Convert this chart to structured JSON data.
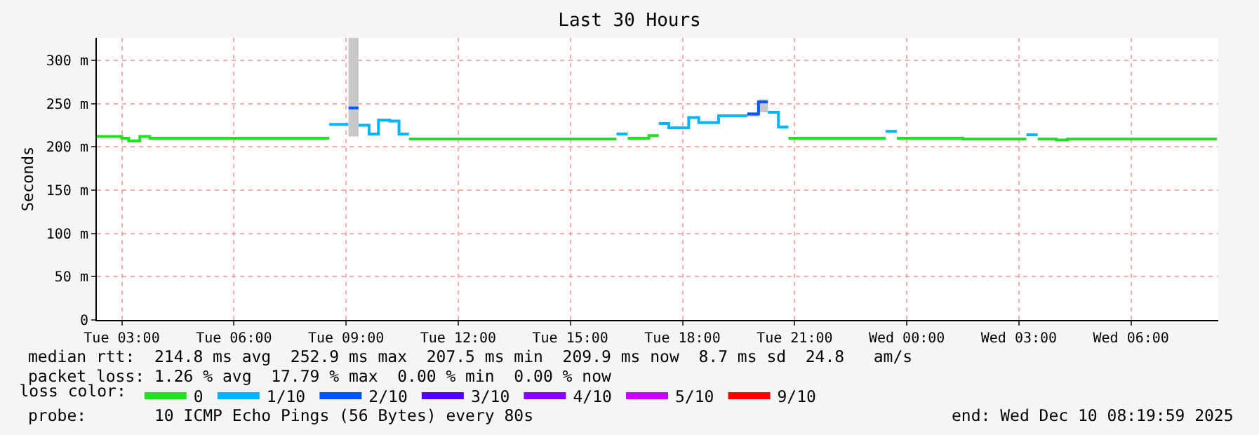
{
  "chart_data": {
    "type": "step",
    "title": "Last 30 Hours",
    "ylabel": "Seconds",
    "xlim": [
      "2025-12-09T02:20",
      "2025-12-10T08:20"
    ],
    "xticks": [
      {
        "value": "2025-12-09T03:00",
        "label": "Tue 03:00"
      },
      {
        "value": "2025-12-09T06:00",
        "label": "Tue 06:00"
      },
      {
        "value": "2025-12-09T09:00",
        "label": "Tue 09:00"
      },
      {
        "value": "2025-12-09T12:00",
        "label": "Tue 12:00"
      },
      {
        "value": "2025-12-09T15:00",
        "label": "Tue 15:00"
      },
      {
        "value": "2025-12-09T18:00",
        "label": "Tue 18:00"
      },
      {
        "value": "2025-12-09T21:00",
        "label": "Tue 21:00"
      },
      {
        "value": "2025-12-10T00:00",
        "label": "Wed 00:00"
      },
      {
        "value": "2025-12-10T03:00",
        "label": "Wed 03:00"
      },
      {
        "value": "2025-12-10T06:00",
        "label": "Wed 06:00"
      }
    ],
    "ylim": [
      0,
      326
    ],
    "yticks": [
      0,
      {
        "value": 50,
        "label": "50 m"
      },
      {
        "value": 100,
        "label": "100 m"
      },
      {
        "value": 150,
        "label": "150 m"
      },
      {
        "value": 200,
        "label": "200 m"
      },
      {
        "value": 250,
        "label": "250 m"
      },
      {
        "value": 300,
        "label": "300 m"
      }
    ],
    "grid": true,
    "legend": "bottom",
    "legend_title": "loss color:",
    "line_style": "solid",
    "marker": "none",
    "series": [
      {
        "name": "0",
        "color": "#20e020",
        "x": [
          "2025-12-09T02:20",
          "2025-12-09T03:00",
          "2025-12-09T03:11",
          "2025-12-09T03:29",
          "2025-12-09T03:45",
          "2025-12-09T08:33",
          "2025-12-09T08:36",
          "2025-12-09T10:41",
          "2025-12-09T16:14",
          "2025-12-09T16:18",
          "2025-12-09T16:32",
          "2025-12-09T17:06",
          "2025-12-09T17:22",
          "2025-12-09T17:24",
          "2025-12-09T20:50",
          "2025-12-09T23:26",
          "2025-12-09T23:30",
          "2025-12-09T23:44",
          "2025-12-10T01:30",
          "2025-12-10T03:12",
          "2025-12-10T03:18",
          "2025-12-10T03:30",
          "2025-12-10T04:00",
          "2025-12-10T04:18",
          "2025-12-10T08:18"
        ],
        "values": [
          212,
          210,
          207,
          212,
          210,
          210,
          null,
          209,
          209,
          null,
          210,
          213,
          213,
          null,
          210,
          210,
          null,
          210,
          209,
          209,
          null,
          209,
          208,
          209,
          209
        ]
      },
      {
        "name": "1/10",
        "color": "#00b4ff",
        "x": [
          "2025-12-09T08:33",
          "2025-12-09T09:04",
          "2025-12-09T09:06",
          "2025-12-09T09:20",
          "2025-12-09T09:37",
          "2025-12-09T09:52",
          "2025-12-09T10:10",
          "2025-12-09T10:25",
          "2025-12-09T10:41",
          "2025-12-09T10:42",
          "2025-12-09T16:14",
          "2025-12-09T16:32",
          "2025-12-09T16:36",
          "2025-12-09T17:22",
          "2025-12-09T17:38",
          "2025-12-09T18:10",
          "2025-12-09T18:26",
          "2025-12-09T18:58",
          "2025-12-09T19:44",
          "2025-12-09T19:48",
          "2025-12-09T20:17",
          "2025-12-09T20:34",
          "2025-12-09T20:50",
          "2025-12-09T20:54",
          "2025-12-09T23:26",
          "2025-12-09T23:44",
          "2025-12-09T23:48",
          "2025-12-10T03:12",
          "2025-12-10T03:30"
        ],
        "values": [
          226,
          226,
          null,
          225,
          215,
          231,
          230,
          215,
          215,
          null,
          215,
          215,
          null,
          227,
          222,
          234,
          228,
          236,
          236,
          null,
          240,
          223,
          223,
          null,
          218,
          218,
          null,
          214,
          214
        ]
      },
      {
        "name": "2/10",
        "color": "#0055ff",
        "x": [
          "2025-12-09T09:04",
          "2025-12-09T09:20",
          "2025-12-09T09:24",
          "2025-12-09T19:44",
          "2025-12-09T20:02",
          "2025-12-09T20:17"
        ],
        "values": [
          245,
          245,
          null,
          238,
          252,
          252
        ],
        "lower": [
          212,
          212,
          null,
          235,
          240,
          240
        ],
        "upper": [
          326,
          326,
          null,
          240,
          255,
          255
        ]
      },
      {
        "name": "3/10",
        "color": "#5500ff"
      },
      {
        "name": "4/10",
        "color": "#8800ff"
      },
      {
        "name": "5/10",
        "color": "#cc00ff"
      },
      {
        "name": "9/10",
        "color": "#ff0000"
      }
    ],
    "annotations": [
      "median rtt:  214.8 ms avg  252.9 ms max  207.5 ms min  209.9 ms now  8.7 ms sd  24.8   am/s",
      "packet loss: 1.26 % avg  17.79 % max  0.00 % min  0.00 % now",
      "probe:       10 ICMP Echo Pings (56 Bytes) every 80s",
      "end: Wed Dec 10 08:19:59 2025"
    ]
  }
}
